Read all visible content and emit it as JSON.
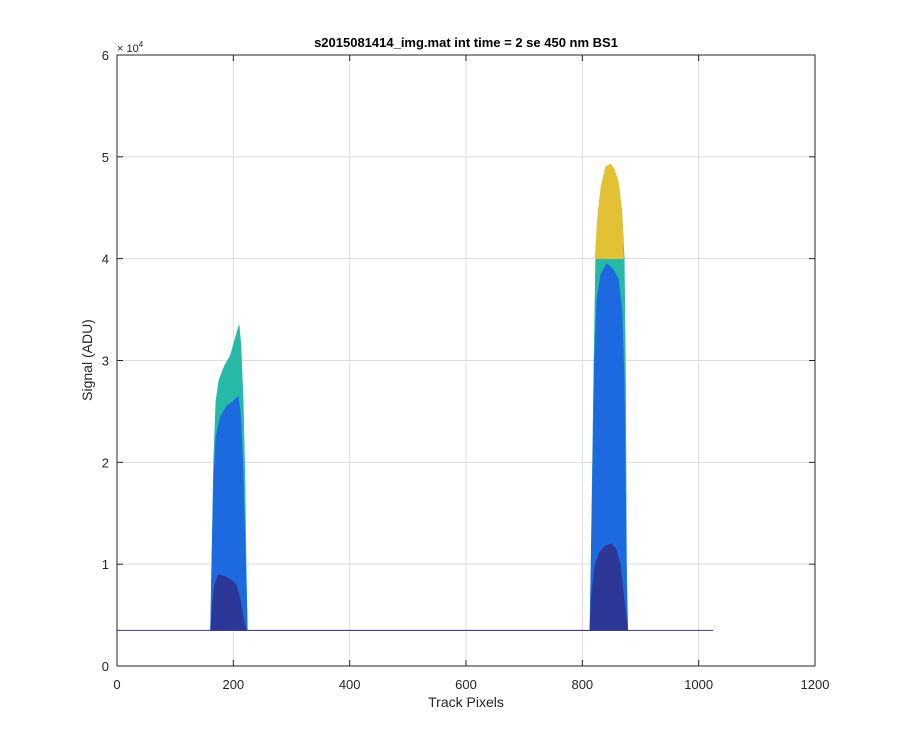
{
  "chart_data": {
    "type": "area",
    "title": "s2015081414_img.mat int time = 2 se  450 nm BS1",
    "xlabel": "Track Pixels",
    "ylabel": "Signal (ADU)",
    "xlim": [
      0,
      1200
    ],
    "ylim": [
      0,
      60000
    ],
    "x_ticks": [
      0,
      200,
      400,
      600,
      800,
      1000,
      1200
    ],
    "x_tick_labels": [
      "0",
      "200",
      "400",
      "600",
      "800",
      "1000",
      "1200"
    ],
    "y_ticks": [
      0,
      10000,
      20000,
      30000,
      40000,
      50000,
      60000
    ],
    "y_tick_labels": [
      "0",
      "1",
      "2",
      "3",
      "4",
      "5",
      "6"
    ],
    "y_exponent_label": "× 10",
    "y_exponent_power": "4",
    "grid": true,
    "baseline": 3500,
    "x_extent": [
      0,
      1025
    ],
    "series": [
      {
        "color": "#27b9a8",
        "points": [
          [
            161,
            3500
          ],
          [
            163,
            10000
          ],
          [
            166,
            20000
          ],
          [
            170,
            26000
          ],
          [
            175,
            28000
          ],
          [
            185,
            29500
          ],
          [
            195,
            30500
          ],
          [
            205,
            32500
          ],
          [
            210,
            33500
          ],
          [
            213,
            31500
          ],
          [
            217,
            26000
          ],
          [
            220,
            18000
          ],
          [
            222,
            10000
          ],
          [
            224,
            3500
          ],
          [
            813,
            3500
          ],
          [
            815,
            10000
          ],
          [
            820,
            30000
          ],
          [
            823,
            40000
          ],
          [
            826,
            43500
          ],
          [
            832,
            46500
          ],
          [
            840,
            48500
          ],
          [
            848,
            49000
          ],
          [
            855,
            48500
          ],
          [
            863,
            47000
          ],
          [
            868,
            44500
          ],
          [
            872,
            40000
          ],
          [
            874,
            30000
          ],
          [
            876,
            10000
          ],
          [
            878,
            3500
          ]
        ]
      },
      {
        "color": "#e3c134",
        "points": [
          [
            822,
            40000
          ],
          [
            826,
            44000
          ],
          [
            832,
            47000
          ],
          [
            840,
            49000
          ],
          [
            848,
            49300
          ],
          [
            855,
            48800
          ],
          [
            862,
            47500
          ],
          [
            868,
            44500
          ],
          [
            871,
            40000
          ]
        ]
      },
      {
        "color": "#1d6ae0",
        "points": [
          [
            161,
            3500
          ],
          [
            163,
            10000
          ],
          [
            166,
            18000
          ],
          [
            170,
            22500
          ],
          [
            178,
            24500
          ],
          [
            188,
            25500
          ],
          [
            200,
            26000
          ],
          [
            208,
            26500
          ],
          [
            212,
            25000
          ],
          [
            216,
            20000
          ],
          [
            220,
            12000
          ],
          [
            223,
            6000
          ],
          [
            224,
            3500
          ],
          [
            813,
            3500
          ],
          [
            815,
            10000
          ],
          [
            818,
            20000
          ],
          [
            821,
            30000
          ],
          [
            825,
            36000
          ],
          [
            832,
            38500
          ],
          [
            842,
            39500
          ],
          [
            852,
            39000
          ],
          [
            862,
            38000
          ],
          [
            868,
            35000
          ],
          [
            872,
            28000
          ],
          [
            874,
            18000
          ],
          [
            876,
            8000
          ],
          [
            878,
            3500
          ]
        ]
      },
      {
        "color": "#2d3797",
        "points": [
          [
            161,
            3500
          ],
          [
            164,
            6000
          ],
          [
            168,
            8000
          ],
          [
            175,
            9000
          ],
          [
            185,
            8800
          ],
          [
            195,
            8500
          ],
          [
            205,
            8000
          ],
          [
            212,
            6500
          ],
          [
            218,
            4500
          ],
          [
            222,
            3500
          ],
          [
            813,
            3500
          ],
          [
            816,
            7000
          ],
          [
            822,
            10000
          ],
          [
            830,
            11200
          ],
          [
            840,
            11800
          ],
          [
            850,
            12000
          ],
          [
            858,
            11500
          ],
          [
            865,
            10000
          ],
          [
            871,
            7000
          ],
          [
            876,
            4500
          ],
          [
            878,
            3500
          ]
        ]
      }
    ]
  }
}
